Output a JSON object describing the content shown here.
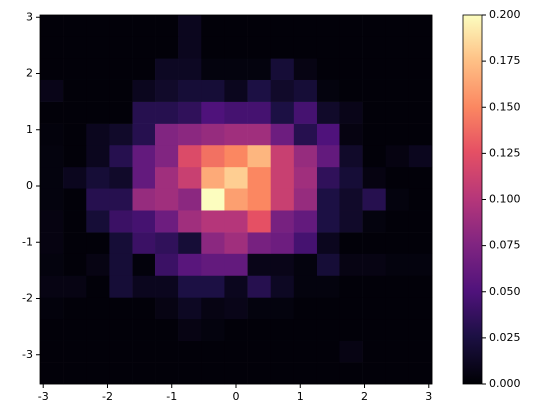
{
  "chart_data": {
    "type": "heatmap",
    "colormap": "magma",
    "xbins": [
      -3.05,
      -2.69,
      -2.33,
      -1.97,
      -1.61,
      -1.26,
      -0.9,
      -0.54,
      -0.18,
      0.18,
      0.54,
      0.9,
      1.26,
      1.61,
      1.97,
      2.33,
      2.69,
      3.05
    ],
    "ybins": [
      -3.52,
      -3.13,
      -2.75,
      -2.36,
      -1.98,
      -1.59,
      -1.2,
      -0.82,
      -0.43,
      -0.04,
      0.34,
      0.73,
      1.11,
      1.5,
      1.89,
      2.27,
      2.66,
      3.04
    ],
    "values": [
      [
        0.002,
        0.002,
        0.002,
        0.002,
        0.002,
        0.002,
        0.002,
        0.002,
        0.002,
        0.002,
        0.002,
        0.002,
        0.002,
        0.002,
        0.002,
        0.002,
        0.002
      ],
      [
        0.002,
        0.002,
        0.002,
        0.002,
        0.002,
        0.002,
        0.002,
        0.002,
        0.002,
        0.002,
        0.002,
        0.002,
        0.002,
        0.006,
        0.002,
        0.002,
        0.002
      ],
      [
        0.002,
        0.002,
        0.002,
        0.002,
        0.002,
        0.002,
        0.006,
        0.004,
        0.002,
        0.002,
        0.002,
        0.002,
        0.002,
        0.002,
        0.002,
        0.002,
        0.002
      ],
      [
        0.003,
        0.002,
        0.002,
        0.002,
        0.002,
        0.006,
        0.012,
        0.006,
        0.008,
        0.004,
        0.004,
        0.002,
        0.002,
        0.002,
        0.002,
        0.002,
        0.002
      ],
      [
        0.006,
        0.006,
        0.002,
        0.02,
        0.01,
        0.01,
        0.025,
        0.025,
        0.01,
        0.03,
        0.012,
        0.004,
        0.004,
        0.002,
        0.002,
        0.002,
        0.002
      ],
      [
        0.004,
        0.002,
        0.006,
        0.02,
        0.003,
        0.04,
        0.055,
        0.06,
        0.06,
        0.008,
        0.008,
        0.004,
        0.02,
        0.006,
        0.006,
        0.004,
        0.004
      ],
      [
        0.005,
        0.002,
        0.002,
        0.02,
        0.04,
        0.035,
        0.02,
        0.08,
        0.09,
        0.07,
        0.065,
        0.045,
        0.01,
        0.002,
        0.002,
        0.002,
        0.002
      ],
      [
        0.005,
        0.002,
        0.02,
        0.04,
        0.045,
        0.065,
        0.09,
        0.1,
        0.1,
        0.125,
        0.07,
        0.06,
        0.025,
        0.015,
        0.004,
        0.002,
        0.002
      ],
      [
        0.004,
        0.002,
        0.03,
        0.03,
        0.085,
        0.09,
        0.08,
        0.2,
        0.16,
        0.15,
        0.11,
        0.085,
        0.025,
        0.015,
        0.03,
        0.004,
        0.002
      ],
      [
        0.004,
        0.01,
        0.02,
        0.015,
        0.06,
        0.09,
        0.11,
        0.165,
        0.18,
        0.15,
        0.11,
        0.09,
        0.035,
        0.02,
        0.005,
        0.002,
        0.002
      ],
      [
        0.004,
        0.002,
        0.01,
        0.03,
        0.06,
        0.075,
        0.12,
        0.14,
        0.15,
        0.17,
        0.11,
        0.085,
        0.06,
        0.015,
        0.002,
        0.005,
        0.01
      ],
      [
        0.003,
        0.002,
        0.01,
        0.015,
        0.03,
        0.075,
        0.08,
        0.085,
        0.09,
        0.09,
        0.065,
        0.03,
        0.05,
        0.005,
        0.002,
        0.002,
        0.002
      ],
      [
        0.002,
        0.002,
        0.002,
        0.002,
        0.03,
        0.03,
        0.035,
        0.05,
        0.045,
        0.045,
        0.025,
        0.045,
        0.015,
        0.008,
        0.002,
        0.002,
        0.002
      ],
      [
        0.008,
        0.002,
        0.002,
        0.002,
        0.01,
        0.015,
        0.02,
        0.02,
        0.01,
        0.025,
        0.015,
        0.02,
        0.004,
        0.002,
        0.002,
        0.002,
        0.002
      ],
      [
        0.002,
        0.002,
        0.002,
        0.002,
        0.002,
        0.012,
        0.012,
        0.004,
        0.004,
        0.004,
        0.02,
        0.006,
        0.002,
        0.002,
        0.002,
        0.002,
        0.002
      ],
      [
        0.002,
        0.002,
        0.002,
        0.002,
        0.002,
        0.002,
        0.01,
        0.002,
        0.002,
        0.002,
        0.002,
        0.002,
        0.002,
        0.002,
        0.002,
        0.002,
        0.002
      ],
      [
        0.002,
        0.002,
        0.002,
        0.002,
        0.002,
        0.002,
        0.01,
        0.002,
        0.002,
        0.002,
        0.002,
        0.002,
        0.002,
        0.002,
        0.002,
        0.002,
        0.002
      ]
    ],
    "xlim": [
      -3.05,
      3.05
    ],
    "ylim": [
      -3.52,
      3.04
    ],
    "xticks": [
      -3,
      -2,
      -1,
      0,
      1,
      2,
      3
    ],
    "yticks": [
      -3,
      -2,
      -1,
      0,
      1,
      2,
      3
    ],
    "clim": [
      0,
      0.2
    ],
    "cticks": [
      {
        "value": 0,
        "label": "0.000"
      },
      {
        "value": 0.025,
        "label": "0.025"
      },
      {
        "value": 0.05,
        "label": "0.050"
      },
      {
        "value": 0.075,
        "label": "0.075"
      },
      {
        "value": 0.1,
        "label": "0.100"
      },
      {
        "value": 0.125,
        "label": "0.125"
      },
      {
        "value": 0.15,
        "label": "0.150"
      },
      {
        "value": 0.175,
        "label": "0.175"
      },
      {
        "value": 0.2,
        "label": "0.200"
      }
    ]
  }
}
